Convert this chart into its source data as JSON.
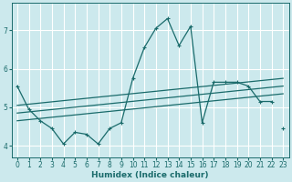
{
  "xlabel": "Humidex (Indice chaleur)",
  "xlim": [
    -0.5,
    23.5
  ],
  "ylim": [
    3.7,
    7.7
  ],
  "xticks": [
    0,
    1,
    2,
    3,
    4,
    5,
    6,
    7,
    8,
    9,
    10,
    11,
    12,
    13,
    14,
    15,
    16,
    17,
    18,
    19,
    20,
    21,
    22,
    23
  ],
  "yticks": [
    4,
    5,
    6,
    7
  ],
  "background_color": "#cce9ed",
  "line_color": "#1a6b6b",
  "grid_color": "#ffffff",
  "curves": [
    {
      "x": [
        0,
        1,
        2,
        3,
        4,
        5,
        6,
        7,
        8,
        9,
        10,
        11,
        12,
        13,
        14,
        15,
        16,
        17,
        18,
        19,
        20,
        21,
        22
      ],
      "y": [
        5.55,
        4.95,
        4.65,
        4.45,
        4.05,
        4.35,
        4.3,
        4.05,
        4.45,
        4.6,
        5.75,
        6.55,
        7.05,
        7.3,
        6.6,
        7.1,
        4.6,
        5.65,
        5.65,
        5.65,
        5.55,
        5.15,
        5.15
      ],
      "marker": "+"
    },
    {
      "x": [
        23
      ],
      "y": [
        4.45
      ],
      "marker": "+"
    },
    {
      "x": [
        0,
        23
      ],
      "y": [
        4.65,
        5.35
      ],
      "marker": null
    },
    {
      "x": [
        0,
        23
      ],
      "y": [
        4.85,
        5.55
      ],
      "marker": null
    },
    {
      "x": [
        0,
        23
      ],
      "y": [
        5.05,
        5.75
      ],
      "marker": null
    }
  ]
}
